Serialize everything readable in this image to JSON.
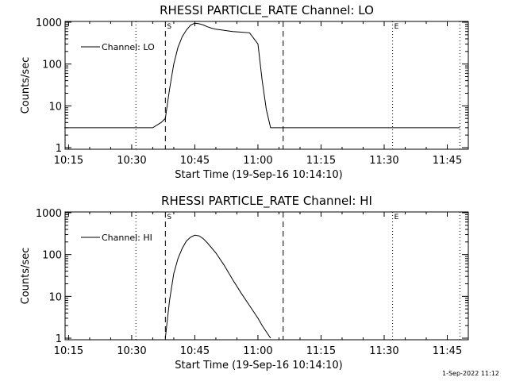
{
  "footer": "1-Sep-2022 11:12",
  "chart_data": [
    {
      "type": "line",
      "title": "RHESSI PARTICLE_RATE Channel: LO",
      "xlabel": "Start Time (19-Sep-16 10:14:10)",
      "ylabel": "Counts/sec",
      "yscale": "log",
      "ylim": [
        1,
        1000
      ],
      "xlim": [
        "10:14:10",
        "11:50:00"
      ],
      "x_ticks": [
        "10:15",
        "10:30",
        "10:45",
        "11:00",
        "11:15",
        "11:30",
        "11:45"
      ],
      "y_ticks": [
        "1",
        "10",
        "100",
        "1000"
      ],
      "legend": "Channel: LO",
      "legend_position": "top-left",
      "dotted_lines": [
        "10:31",
        "11:32",
        "11:48"
      ],
      "dashed_lines": [
        "10:38",
        "11:06"
      ],
      "markers": [
        {
          "label": "S",
          "x": "10:38"
        },
        {
          "label": "E",
          "x": "11:32"
        }
      ],
      "series": [
        {
          "x": [
            "10:14",
            "10:24",
            "10:30",
            "10:35",
            "10:37",
            "10:38",
            "10:39",
            "10:40",
            "10:41",
            "10:42",
            "10:43",
            "10:44",
            "10:45",
            "10:46",
            "10:47",
            "10:48",
            "10:49",
            "10:50",
            "10:52",
            "10:54",
            "10:56",
            "10:58",
            "11:00",
            "11:01",
            "11:02",
            "11:03",
            "11:04",
            "11:06",
            "11:10",
            "11:15",
            "11:20",
            "11:30",
            "11:40",
            "11:48"
          ],
          "y": [
            3,
            3,
            3,
            3,
            4,
            5,
            25,
            100,
            250,
            450,
            650,
            850,
            950,
            920,
            860,
            780,
            720,
            680,
            640,
            600,
            580,
            560,
            300,
            40,
            8,
            3,
            3,
            3,
            3,
            3,
            3,
            3,
            3,
            3
          ]
        }
      ]
    },
    {
      "type": "line",
      "title": "RHESSI PARTICLE_RATE Channel: HI",
      "xlabel": "Start Time (19-Sep-16 10:14:10)",
      "ylabel": "Counts/sec",
      "yscale": "log",
      "ylim": [
        1,
        1000
      ],
      "xlim": [
        "10:14:10",
        "11:50:00"
      ],
      "x_ticks": [
        "10:15",
        "10:30",
        "10:45",
        "11:00",
        "11:15",
        "11:30",
        "11:45"
      ],
      "y_ticks": [
        "1",
        "10",
        "100",
        "1000"
      ],
      "legend": "Channel: HI",
      "legend_position": "top-left",
      "dotted_lines": [
        "10:31",
        "11:32",
        "11:48"
      ],
      "dashed_lines": [
        "10:38",
        "11:06"
      ],
      "markers": [
        {
          "label": "S",
          "x": "10:38"
        },
        {
          "label": "E",
          "x": "11:32"
        }
      ],
      "series": [
        {
          "x": [
            "10:38",
            "10:39",
            "10:40",
            "10:41",
            "10:42",
            "10:43",
            "10:44",
            "10:45",
            "10:46",
            "10:47",
            "10:48",
            "10:50",
            "10:52",
            "10:54",
            "10:56",
            "10:58",
            "11:00",
            "11:01",
            "11:03"
          ],
          "y": [
            1,
            8,
            35,
            80,
            140,
            210,
            260,
            290,
            280,
            240,
            190,
            110,
            55,
            25,
            12,
            6,
            3,
            2,
            1
          ]
        }
      ]
    }
  ]
}
